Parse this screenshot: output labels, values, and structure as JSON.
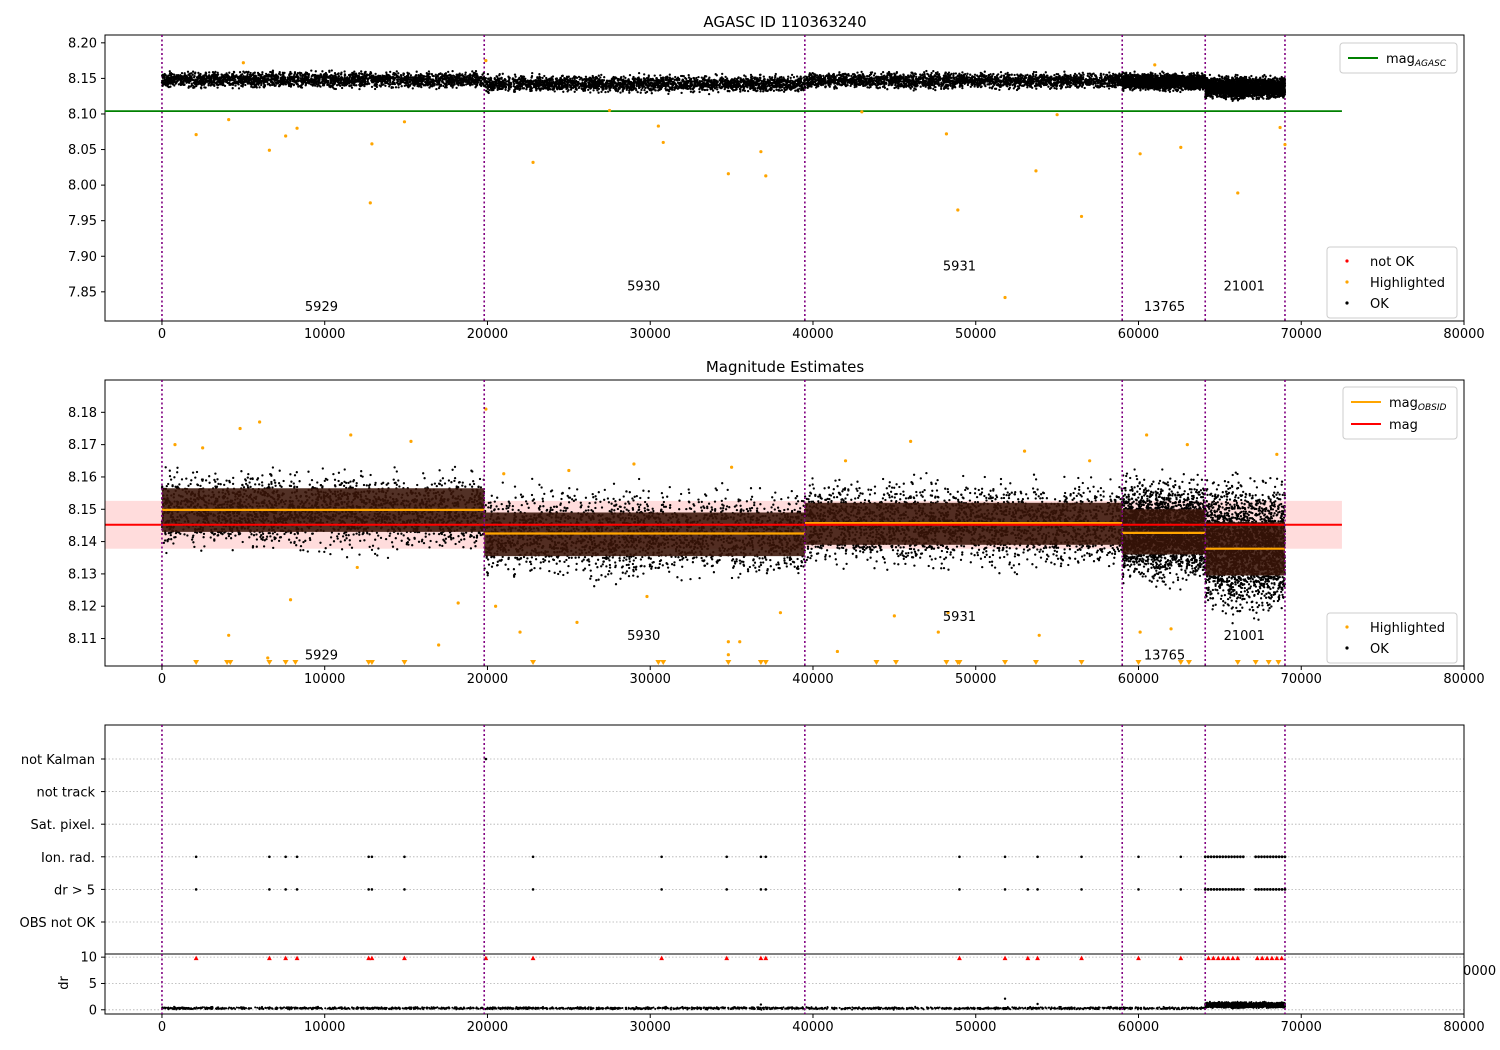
{
  "figure": {
    "background": "#ffffff"
  },
  "colors": {
    "ok": "#000000",
    "highlighted": "#ffa500",
    "not_ok": "#ff0000",
    "agasc_line": "#008000",
    "mag_obsid_line": "#ffa500",
    "mag_line": "#ff0000",
    "obs_boundary": "#800080",
    "band_fill": "#ffc0c0",
    "grid": "#b0b0b0"
  },
  "chart_data": [
    {
      "type": "scatter",
      "title": "AGASC ID 110363240",
      "xlabel": "",
      "ylabel": "",
      "xlim": [
        -3500,
        80000
      ],
      "ylim": [
        7.809,
        8.211
      ],
      "xticks": [
        0,
        10000,
        20000,
        30000,
        40000,
        50000,
        60000,
        70000,
        80000
      ],
      "yticks": [
        7.85,
        7.9,
        7.95,
        8.0,
        8.05,
        8.1,
        8.15,
        8.2
      ],
      "xtick_labels": [
        "0",
        "10000",
        "20000",
        "30000",
        "40000",
        "50000",
        "60000",
        "70000",
        "80000"
      ],
      "ytick_labels": [
        "7.85",
        "7.90",
        "7.95",
        "8.00",
        "8.05",
        "8.10",
        "8.15",
        "8.20"
      ],
      "obs_boundaries": [
        0,
        19800,
        39500,
        59000,
        64100,
        69000
      ],
      "obsid_labels": [
        {
          "text": "5929",
          "x": 9800,
          "y": 7.823
        },
        {
          "text": "5930",
          "x": 29600,
          "y": 7.852
        },
        {
          "text": "5931",
          "x": 49000,
          "y": 7.88
        },
        {
          "text": "13765",
          "x": 61600,
          "y": 7.823
        },
        {
          "text": "21001",
          "x": 66500,
          "y": 7.852
        }
      ],
      "reference_line": {
        "name": "mag_AGASC",
        "y": 8.104,
        "x": [
          -3500,
          72500
        ]
      },
      "ok_segments": [
        {
          "x": [
            0,
            19800
          ],
          "y": [
            8.133,
            8.163
          ]
        },
        {
          "x": [
            19800,
            39500
          ],
          "y": [
            8.127,
            8.158
          ]
        },
        {
          "x": [
            39500,
            59000
          ],
          "y": [
            8.132,
            8.162
          ]
        },
        {
          "x": [
            59000,
            64100
          ],
          "y": [
            8.13,
            8.16
          ]
        },
        {
          "x": [
            64100,
            69000
          ],
          "y": [
            8.117,
            8.157
          ]
        }
      ],
      "highlighted_points": [
        [
          2100,
          8.071
        ],
        [
          4100,
          8.092
        ],
        [
          6600,
          8.049
        ],
        [
          7600,
          8.069
        ],
        [
          8300,
          8.08
        ],
        [
          12800,
          7.975
        ],
        [
          12900,
          8.058
        ],
        [
          14900,
          8.089
        ],
        [
          22800,
          8.032
        ],
        [
          30500,
          8.083
        ],
        [
          30800,
          8.06
        ],
        [
          34800,
          8.016
        ],
        [
          36800,
          8.047
        ],
        [
          37100,
          8.013
        ],
        [
          48200,
          8.072
        ],
        [
          48900,
          7.965
        ],
        [
          51800,
          7.842
        ],
        [
          53700,
          8.02
        ],
        [
          56500,
          7.956
        ],
        [
          60100,
          8.044
        ],
        [
          62600,
          8.053
        ],
        [
          66100,
          7.989
        ],
        [
          68700,
          8.081
        ],
        [
          69000,
          8.057
        ],
        [
          5000,
          8.172
        ],
        [
          19900,
          8.175
        ],
        [
          61000,
          8.169
        ],
        [
          43000,
          8.103
        ],
        [
          27500,
          8.105
        ],
        [
          55000,
          8.099
        ]
      ],
      "legend_lines": [
        {
          "label": "mag",
          "sub": "AGASC"
        }
      ],
      "legend_markers": [
        {
          "label": "not OK"
        },
        {
          "label": "Highlighted"
        },
        {
          "label": "OK"
        }
      ]
    },
    {
      "type": "scatter",
      "title": "Magnitude Estimates",
      "xlabel": "",
      "ylabel": "",
      "xlim": [
        -3500,
        80000
      ],
      "ylim": [
        8.1015,
        8.19
      ],
      "xticks": [
        0,
        10000,
        20000,
        30000,
        40000,
        50000,
        60000,
        70000,
        80000
      ],
      "yticks": [
        8.11,
        8.12,
        8.13,
        8.14,
        8.15,
        8.16,
        8.17,
        8.18
      ],
      "xtick_labels": [
        "0",
        "10000",
        "20000",
        "30000",
        "40000",
        "50000",
        "60000",
        "70000",
        "80000"
      ],
      "ytick_labels": [
        "8.11",
        "8.12",
        "8.13",
        "8.14",
        "8.15",
        "8.16",
        "8.17",
        "8.18"
      ],
      "obs_boundaries": [
        0,
        19800,
        39500,
        59000,
        64100,
        69000
      ],
      "obsid_labels": [
        {
          "text": "5929",
          "x": 9800,
          "y": 8.1035
        },
        {
          "text": "5930",
          "x": 29600,
          "y": 8.1095
        },
        {
          "text": "5931",
          "x": 49000,
          "y": 8.1155
        },
        {
          "text": "13765",
          "x": 61600,
          "y": 8.1035
        },
        {
          "text": "21001",
          "x": 66500,
          "y": 8.1095
        }
      ],
      "mag": {
        "value": 8.1452,
        "band": [
          8.1378,
          8.1526
        ],
        "x": [
          -3500,
          72500
        ]
      },
      "mag_obsid": [
        {
          "x": [
            0,
            19800
          ],
          "value": 8.1498,
          "band": [
            8.143,
            8.1565
          ]
        },
        {
          "x": [
            19800,
            39500
          ],
          "value": 8.1425,
          "band": [
            8.1355,
            8.149
          ]
        },
        {
          "x": [
            39500,
            59000
          ],
          "value": 8.1457,
          "band": [
            8.139,
            8.152
          ]
        },
        {
          "x": [
            59000,
            64100
          ],
          "value": 8.1427,
          "band": [
            8.136,
            8.15
          ]
        },
        {
          "x": [
            64100,
            69000
          ],
          "value": 8.1378,
          "band": [
            8.1295,
            8.146
          ]
        }
      ],
      "ok_segments": [
        {
          "x": [
            0,
            19800
          ],
          "y": [
            8.134,
            8.165
          ]
        },
        {
          "x": [
            19800,
            39500
          ],
          "y": [
            8.125,
            8.16
          ]
        },
        {
          "x": [
            39500,
            59000
          ],
          "y": [
            8.128,
            8.163
          ]
        },
        {
          "x": [
            59000,
            64100
          ],
          "y": [
            8.124,
            8.163
          ]
        },
        {
          "x": [
            64100,
            69000
          ],
          "y": [
            8.113,
            8.164
          ]
        }
      ],
      "highlighted_points": [
        [
          800,
          8.17
        ],
        [
          2500,
          8.169
        ],
        [
          4800,
          8.175
        ],
        [
          6000,
          8.177
        ],
        [
          11600,
          8.173
        ],
        [
          15300,
          8.171
        ],
        [
          19900,
          8.181
        ],
        [
          21000,
          8.161
        ],
        [
          25000,
          8.162
        ],
        [
          29000,
          8.164
        ],
        [
          35000,
          8.163
        ],
        [
          42000,
          8.165
        ],
        [
          46000,
          8.171
        ],
        [
          53000,
          8.168
        ],
        [
          57000,
          8.165
        ],
        [
          60500,
          8.173
        ],
        [
          63000,
          8.17
        ],
        [
          68500,
          8.167
        ],
        [
          4100,
          8.111
        ],
        [
          7900,
          8.122
        ],
        [
          12000,
          8.132
        ],
        [
          17000,
          8.108
        ],
        [
          18200,
          8.121
        ],
        [
          20500,
          8.12
        ],
        [
          22000,
          8.112
        ],
        [
          25500,
          8.115
        ],
        [
          29800,
          8.123
        ],
        [
          34800,
          8.109
        ],
        [
          35500,
          8.109
        ],
        [
          38000,
          8.118
        ],
        [
          41500,
          8.106
        ],
        [
          45000,
          8.117
        ],
        [
          47700,
          8.112
        ],
        [
          48300,
          8.118
        ],
        [
          53900,
          8.111
        ],
        [
          60100,
          8.112
        ],
        [
          62000,
          8.113
        ],
        [
          6500,
          8.104
        ],
        [
          34800,
          8.105
        ]
      ],
      "clipped_x": [
        2100,
        4000,
        4200,
        6600,
        7600,
        8200,
        12700,
        12900,
        14900,
        22800,
        30500,
        30800,
        34800,
        36800,
        37100,
        43900,
        45100,
        48200,
        48900,
        49000,
        51800,
        53700,
        56500,
        60000,
        62600,
        63100,
        66100,
        67200,
        68000,
        68600
      ],
      "legend_lines": [
        {
          "label": "mag",
          "sub": "OBSID"
        },
        {
          "label": "mag",
          "sub": ""
        }
      ],
      "legend_markers": [
        {
          "label": "Highlighted"
        },
        {
          "label": "OK"
        }
      ]
    },
    {
      "type": "scatter",
      "title": "",
      "xlabel": "",
      "ylabel": "",
      "xlim": [
        -3500,
        80000
      ],
      "flag_rows": [
        "not Kalman",
        "not track",
        "Sat. pixel.",
        "Ion. rad.",
        "dr > 5",
        "OBS not OK"
      ],
      "flag_points": {
        "not Kalman": [
          19900
        ],
        "not track": [],
        "Sat. pixel.": [],
        "Ion. rad.": [
          2100,
          6600,
          7600,
          8300,
          12700,
          12900,
          14900,
          22800,
          30700,
          34700,
          36800,
          37100,
          49000,
          51800,
          53800,
          56500,
          60000,
          62600
        ],
        "dr > 5": [
          2100,
          6600,
          7600,
          8300,
          12700,
          12900,
          14900,
          22800,
          30700,
          34700,
          36800,
          37100,
          49000,
          51800,
          53200,
          53800,
          56500,
          60000,
          62600
        ],
        "OBS not OK": []
      },
      "flag_dense_ranges": {
        "Ion. rad.": [
          [
            64100,
            66500
          ],
          [
            67200,
            69000
          ]
        ],
        "dr > 5": [
          [
            64100,
            66500
          ],
          [
            67200,
            69000
          ]
        ]
      },
      "obs_boundaries": [
        0,
        19800,
        39500,
        59000,
        64100,
        69000
      ]
    },
    {
      "type": "scatter",
      "title": "",
      "xlabel": "",
      "ylabel": "dr",
      "xlim": [
        -3500,
        80000
      ],
      "ylim": [
        -0.8,
        10.6
      ],
      "yticks": [
        0,
        5,
        10
      ],
      "ytick_labels": [
        "0",
        "5",
        "10"
      ],
      "xticks": [
        0,
        10000,
        20000,
        30000,
        40000,
        50000,
        60000,
        70000,
        80000
      ],
      "xtick_labels": [
        "0",
        "10000",
        "20000",
        "30000",
        "40000",
        "50000",
        "60000",
        "70000",
        "80000"
      ],
      "clipped_label": "0000",
      "obs_boundaries": [
        0,
        19800,
        39500,
        59000,
        64100,
        69000
      ],
      "ok_segments": [
        {
          "x": [
            0,
            64100
          ],
          "y": [
            0.0,
            0.6
          ]
        },
        {
          "x": [
            64100,
            69000
          ],
          "y": [
            0.2,
            1.6
          ]
        }
      ],
      "outlier_points": [
        [
          51800,
          2.1
        ],
        [
          53800,
          1.1
        ],
        [
          36800,
          1.0
        ]
      ],
      "clipped_x": [
        2100,
        6600,
        7600,
        8300,
        12700,
        12900,
        14900,
        19900,
        22800,
        30700,
        34700,
        36800,
        37100,
        49000,
        51800,
        53200,
        53800,
        56500,
        60000,
        62600,
        64300,
        64600,
        64900,
        65200,
        65500,
        65800,
        66100,
        67300,
        67600,
        67900,
        68200,
        68500,
        68800
      ]
    }
  ]
}
